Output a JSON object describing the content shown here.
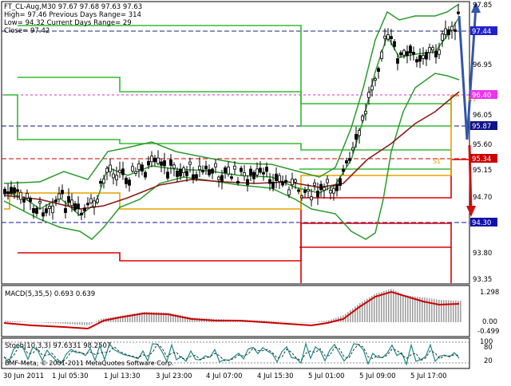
{
  "main": {
    "header": {
      "line1": "FT_CL-Aug,M30  97.67 97.68 97.63 97.63",
      "line2": "High= 97.46    Previous Days Range= 314",
      "line3": "Low= 94.32     Current Days Range= 29",
      "line4": "Close= 97.42"
    },
    "price_axis": [
      "97.85",
      "97.44",
      "96.95",
      "96.40",
      "96.05",
      "95.87",
      "95.60",
      "95.34",
      "95.15",
      "94.70",
      "94.30",
      "93.80",
      "93.35"
    ],
    "price_tags": [
      {
        "label": "97.44",
        "bg": "#2222cc",
        "fg": "#ffffff"
      },
      {
        "label": "96.40",
        "bg": "#ee33ee",
        "fg": "#ffffff"
      },
      {
        "label": "95.87",
        "bg": "#111188",
        "fg": "#ffffff"
      },
      {
        "label": "95.34",
        "bg": "#cc0000",
        "fg": "#ffffff"
      },
      {
        "label": "94.30",
        "bg": "#1111aa",
        "fg": "#ffffff"
      }
    ],
    "level_labels": [
      "S1",
      "R1"
    ]
  },
  "macd": {
    "title": "MACD(5,35,5) 0.693 0.639",
    "axis": [
      "1.298",
      "0.00",
      "-0.499"
    ]
  },
  "stoch": {
    "title": "Stoch(10,3,3) 97.6331 98.2507",
    "axis": [
      "100",
      "80",
      "20",
      "0"
    ]
  },
  "footer": {
    "copyright": "BMF-Meta, © 2001-2011 MetaQuotes Software Corp.",
    "time_labels": [
      "30 Jun 2011",
      "1 Jul 05:30",
      "1 Jul 13:30",
      "3 Jul 23:00",
      "4 Jul 07:00",
      "4 Jul 15:30",
      "5 Jul 01:00",
      "5 Jul 09:00",
      "5 Jul 17:00"
    ]
  },
  "colors": {
    "bollinger": "#2b9a2b",
    "pivot_green": "#33bb33",
    "pivot_red": "#dd0000",
    "orange": "#e8a000",
    "ma": "#8b1a1a",
    "arrow": "#3355aa",
    "macd_line": "#cc0000",
    "macd_hist": "#a0a0a0"
  }
}
